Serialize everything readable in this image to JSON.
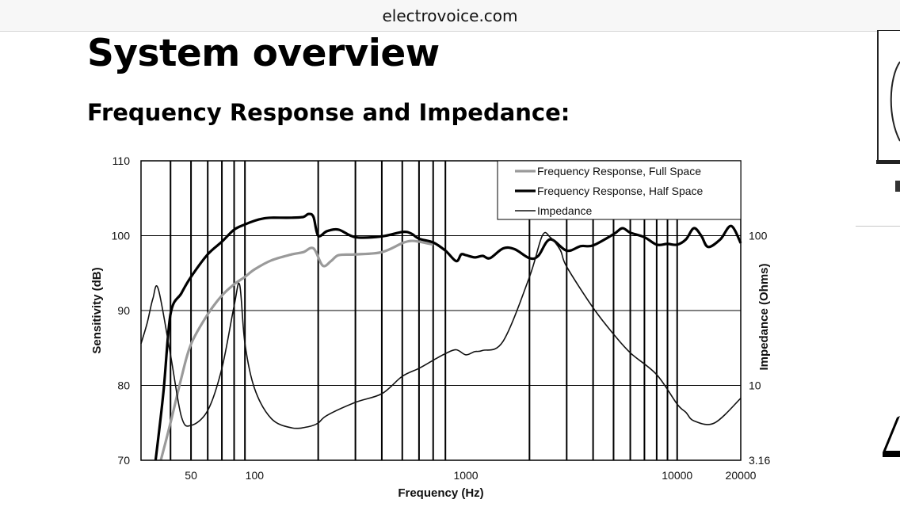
{
  "browser": {
    "url": "electrovoice.com"
  },
  "page": {
    "title": "System overview",
    "section_heading": "Frequency Response and Impedance:"
  },
  "colors": {
    "full_space": "#9a9a9a",
    "half_space": "#000000",
    "impedance": "#111111",
    "grid": "#000000"
  },
  "chart_data": {
    "type": "line",
    "xlabel": "Frequency (Hz)",
    "ylabel": "Sensitivity (dB)",
    "y2label": "Impedance (Ohms)",
    "xscale": "log",
    "xlim": [
      29,
      20000
    ],
    "ylim": [
      70,
      110
    ],
    "y2lim": [
      3.16,
      100
    ],
    "y2scale": "log",
    "x_ticks": [
      {
        "value": 50,
        "label": "50"
      },
      {
        "value": 100,
        "label": "100"
      },
      {
        "value": 1000,
        "label": "1000"
      },
      {
        "value": 10000,
        "label": "10000"
      },
      {
        "value": 20000,
        "label": "20000"
      }
    ],
    "y_ticks": [
      {
        "value": 70,
        "label": "70"
      },
      {
        "value": 80,
        "label": "80"
      },
      {
        "value": 90,
        "label": "90"
      },
      {
        "value": 100,
        "label": "100"
      },
      {
        "value": 110,
        "label": "110"
      }
    ],
    "y2_ticks": [
      {
        "value": 3.16,
        "label": "3.16"
      },
      {
        "value": 10,
        "label": "10"
      },
      {
        "value": 100,
        "label": "100"
      }
    ],
    "vertical_gridlines": [
      40,
      50,
      60,
      70,
      80,
      90,
      200,
      300,
      400,
      500,
      600,
      700,
      800,
      2000,
      3000,
      4000,
      5000,
      6000,
      7000,
      8000,
      9000,
      10000
    ],
    "horizontal_gridlines": [
      80,
      90,
      100
    ],
    "legend": {
      "placement": "top-right",
      "entries": [
        "Frequency Response, Full Space",
        "Frequency Response, Half Space",
        "Impedance"
      ]
    },
    "series": [
      {
        "name": "Frequency Response, Full Space",
        "axis": "left",
        "x": [
          36,
          40,
          45,
          50,
          60,
          70,
          80,
          90,
          100,
          120,
          150,
          170,
          190,
          210,
          230,
          250,
          300,
          400,
          500,
          550,
          600,
          700
        ],
        "y": [
          70,
          75,
          81,
          85.5,
          89.5,
          92,
          93.5,
          94.5,
          95.5,
          96.7,
          97.5,
          97.8,
          98.3,
          96,
          96.6,
          97.4,
          97.5,
          97.8,
          99,
          99.3,
          99.2,
          98.8
        ]
      },
      {
        "name": "Frequency Response, Half Space",
        "axis": "left",
        "x": [
          34,
          37,
          40,
          45,
          50,
          60,
          70,
          80,
          90,
          100,
          110,
          120,
          150,
          170,
          180,
          190,
          200,
          220,
          250,
          300,
          400,
          500,
          550,
          600,
          700,
          800,
          900,
          950,
          1000,
          1100,
          1200,
          1300,
          1500,
          1700,
          2000,
          2200,
          2500,
          3000,
          3500,
          4000,
          5000,
          5500,
          6000,
          7000,
          8000,
          9000,
          10000,
          11000,
          12000,
          13000,
          14000,
          16000,
          18000,
          20000
        ],
        "y": [
          70,
          79,
          89.5,
          92.3,
          94.5,
          97.5,
          99.2,
          100.8,
          101.5,
          102,
          102.3,
          102.4,
          102.4,
          102.5,
          102.9,
          102.5,
          100,
          100.6,
          100.8,
          99.8,
          99.9,
          100.5,
          100.3,
          99.6,
          99.1,
          98,
          96.6,
          97.5,
          97.4,
          97.1,
          97.3,
          97,
          98.3,
          98.2,
          97,
          97.3,
          99.5,
          98,
          98.6,
          98.7,
          100.2,
          101,
          100.4,
          99.8,
          98.8,
          98.9,
          98.8,
          99.5,
          101,
          100,
          98.5,
          99.5,
          101.3,
          99
        ]
      },
      {
        "name": "Impedance",
        "axis": "right",
        "x": [
          29,
          31,
          33,
          35,
          40,
          45,
          50,
          60,
          70,
          80,
          85,
          90,
          100,
          120,
          150,
          180,
          200,
          220,
          300,
          400,
          500,
          600,
          700,
          800,
          900,
          1000,
          1100,
          1200,
          1500,
          2000,
          2300,
          2500,
          2800,
          3000,
          4000,
          5000,
          6000,
          8000,
          10000,
          11000,
          12000,
          15000,
          20000
        ],
        "y": [
          19,
          26,
          38,
          44,
          16,
          6.2,
          5.4,
          6.8,
          13,
          34,
          47,
          19,
          9.5,
          6,
          5.2,
          5.3,
          5.6,
          6.3,
          7.7,
          8.8,
          11.5,
          13,
          14.7,
          16.3,
          17.3,
          16,
          16.8,
          17.1,
          19.7,
          53,
          100,
          98,
          80,
          62,
          33,
          22,
          16.5,
          11.8,
          7.5,
          6.6,
          5.8,
          5.6,
          8.2
        ]
      }
    ]
  }
}
